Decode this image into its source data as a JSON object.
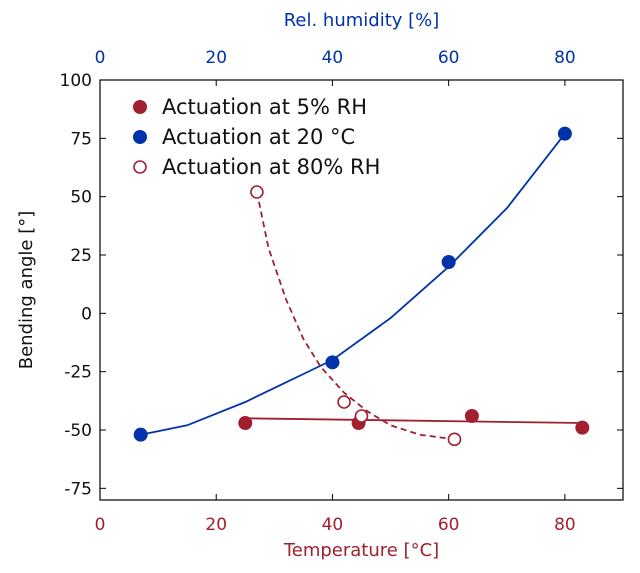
{
  "chart_data": {
    "type": "scatter",
    "x_bottom": {
      "label": "Temperature [°C]",
      "range": [
        0,
        90
      ],
      "ticks": [
        "0",
        "20",
        "40",
        "60",
        "80"
      ],
      "color": "#a0202f"
    },
    "x_top": {
      "label": "Rel. humidity [%]",
      "range": [
        0,
        90
      ],
      "ticks": [
        "0",
        "20",
        "40",
        "60",
        "80"
      ],
      "color": "#0033aa"
    },
    "y": {
      "label": "Bending angle [°]",
      "range": [
        -80,
        100
      ],
      "ticks": [
        "100",
        "75",
        "50",
        "25",
        "0",
        "-25",
        "-50",
        "-75"
      ]
    },
    "grid": false,
    "legend_position": "top-left",
    "series": [
      {
        "name": "Actuation at 5% RH",
        "axis": "bottom",
        "marker": "filled",
        "line": "solid",
        "color": "#a0202f",
        "points": [
          [
            25,
            -47
          ],
          [
            44.5,
            -47
          ],
          [
            64,
            -44
          ],
          [
            83,
            -49
          ]
        ],
        "fit": [
          [
            25,
            -45
          ],
          [
            83,
            -47
          ]
        ]
      },
      {
        "name": "Actuation at 20 °C",
        "axis": "top",
        "marker": "filled",
        "line": "solid",
        "color": "#0033aa",
        "points": [
          [
            7,
            -52
          ],
          [
            40,
            -21
          ],
          [
            60,
            22
          ],
          [
            80,
            77
          ]
        ],
        "fit": [
          [
            7,
            -52
          ],
          [
            15,
            -48
          ],
          [
            25,
            -38
          ],
          [
            35,
            -26
          ],
          [
            40,
            -20
          ],
          [
            50,
            -2
          ],
          [
            60,
            20
          ],
          [
            70,
            45
          ],
          [
            80,
            77
          ]
        ]
      },
      {
        "name": "Actuation at 80% RH",
        "axis": "bottom",
        "marker": "open",
        "line": "dashed",
        "color": "#a0202f",
        "points": [
          [
            27,
            52
          ],
          [
            42,
            -38
          ],
          [
            45,
            -44
          ],
          [
            61,
            -54
          ]
        ],
        "fit": [
          [
            27,
            52
          ],
          [
            29,
            28
          ],
          [
            32,
            6
          ],
          [
            35,
            -11
          ],
          [
            38,
            -23
          ],
          [
            42,
            -34
          ],
          [
            46,
            -42
          ],
          [
            50,
            -48
          ],
          [
            55,
            -52
          ],
          [
            61,
            -54
          ]
        ]
      }
    ]
  }
}
